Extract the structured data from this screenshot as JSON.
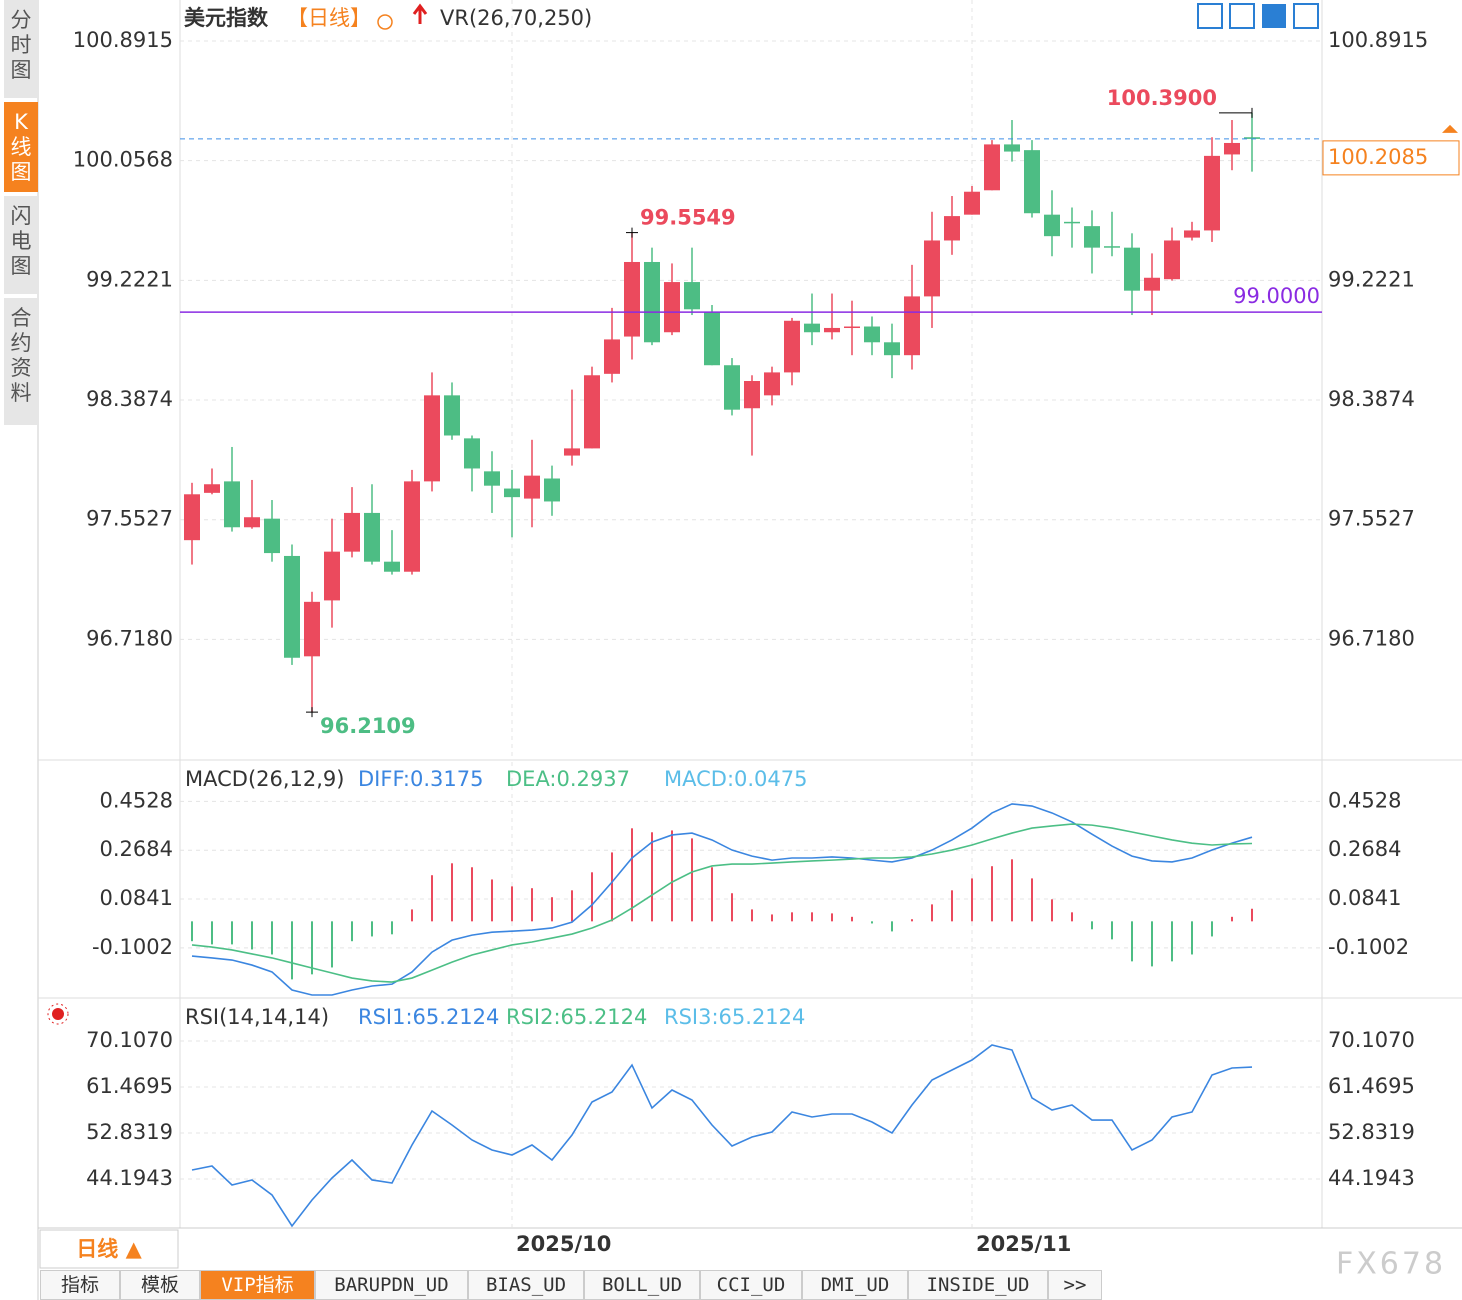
{
  "header": {
    "title": "美元指数",
    "period": "【日线】",
    "indicator": "VR(26,70,250)"
  },
  "side_tabs": [
    "分时图",
    "K线图",
    "闪电图",
    "合约资料"
  ],
  "chart_data": [
    {
      "type": "candlestick",
      "categories": [
        null,
        null,
        null,
        null,
        null,
        null,
        null,
        null,
        null,
        null,
        null,
        null,
        null,
        null,
        null,
        null,
        "2025/10",
        null,
        null,
        null,
        null,
        null,
        null,
        null,
        null,
        null,
        null,
        null,
        null,
        null,
        null,
        null,
        null,
        null,
        null,
        null,
        null,
        null,
        null,
        "2025/11",
        null,
        null,
        null,
        null,
        null,
        null,
        null,
        null,
        null,
        null,
        null,
        null,
        null,
        null
      ],
      "open": [
        97.41,
        97.74,
        97.82,
        97.5,
        97.56,
        97.3,
        96.6,
        96.99,
        97.33,
        97.6,
        97.26,
        97.19,
        97.82,
        98.42,
        98.12,
        97.89,
        97.77,
        97.7,
        97.84,
        98.0,
        98.05,
        98.57,
        98.83,
        99.35,
        98.86,
        99.21,
        99.0,
        98.63,
        98.33,
        98.42,
        98.58,
        98.92,
        98.86,
        98.89,
        98.9,
        98.79,
        98.7,
        99.11,
        99.5,
        99.68,
        99.85,
        100.17,
        100.13,
        99.68,
        99.63,
        99.6,
        99.46,
        99.45,
        99.15,
        99.23,
        99.52,
        99.57,
        100.1,
        100.22
      ],
      "high": [
        97.81,
        97.91,
        98.06,
        97.83,
        97.69,
        97.38,
        97.05,
        97.56,
        97.78,
        97.8,
        97.48,
        97.9,
        98.58,
        98.51,
        98.14,
        98.03,
        97.9,
        98.11,
        97.93,
        98.46,
        98.62,
        99.03,
        99.5549,
        99.45,
        99.34,
        99.45,
        99.05,
        98.68,
        98.56,
        98.62,
        98.96,
        99.13,
        99.13,
        99.08,
        98.97,
        98.92,
        99.33,
        99.7,
        99.81,
        99.88,
        100.2,
        100.34,
        100.2,
        99.85,
        99.73,
        99.71,
        99.7,
        99.55,
        99.41,
        99.59,
        99.63,
        100.22,
        100.34,
        100.39
      ],
      "low": [
        97.24,
        97.73,
        97.47,
        97.49,
        97.26,
        96.54,
        96.2109,
        96.8,
        97.29,
        97.24,
        97.17,
        97.17,
        97.75,
        98.11,
        97.75,
        97.6,
        97.43,
        97.5,
        97.58,
        97.93,
        98.05,
        98.51,
        98.67,
        98.77,
        98.84,
        98.98,
        98.63,
        98.28,
        98.0,
        98.35,
        98.49,
        98.77,
        98.81,
        98.7,
        98.7,
        98.54,
        98.6,
        98.89,
        99.4,
        99.68,
        99.85,
        100.05,
        99.66,
        99.39,
        99.45,
        99.27,
        99.39,
        98.98,
        98.98,
        99.22,
        99.5,
        99.49,
        99.99,
        99.98
      ],
      "close": [
        97.73,
        97.8,
        97.5,
        97.57,
        97.32,
        96.59,
        96.98,
        97.33,
        97.6,
        97.26,
        97.19,
        97.82,
        98.42,
        98.14,
        97.91,
        97.79,
        97.71,
        97.86,
        97.68,
        98.05,
        98.56,
        98.81,
        99.35,
        98.79,
        99.21,
        99.02,
        98.63,
        98.32,
        98.52,
        98.58,
        98.94,
        98.86,
        98.89,
        98.9,
        98.79,
        98.7,
        99.11,
        99.5,
        99.67,
        99.84,
        100.17,
        100.12,
        99.69,
        99.53,
        99.62,
        99.45,
        99.45,
        99.15,
        99.24,
        99.5,
        99.57,
        100.09,
        100.18,
        100.2085
      ],
      "up_color": "#eb4a5d",
      "down_color": "#4dbd84",
      "ylim": [
        95.877,
        101.177
      ],
      "yticks": [
        100.8915,
        100.0568,
        99.2221,
        98.3874,
        97.5527,
        {
          "value": 96.718,
          "label": "96.7180"
        }
      ],
      "annotations": [
        {
          "value": 99.5549,
          "color": "#eb4a5d"
        },
        {
          "value": 100.39,
          "label": "100.3900",
          "color": "#eb4a5d"
        },
        {
          "value": 96.2109,
          "color": "#4dbd84"
        }
      ],
      "hline": {
        "value": 99.0,
        "label": "99.0000",
        "color": "#8a2be2"
      },
      "last_price": 100.2085,
      "last_price_color": "#f5821f",
      "last_line_color": "#3f8fe6",
      "grid": true
    },
    {
      "type": "macd",
      "label": "MACD(26,12,9)",
      "legend": [
        {
          "text": "DIFF:0.3175",
          "color": "#3b86e0"
        },
        {
          "text": "DEA:0.2937",
          "color": "#4cbf86"
        },
        {
          "text": "MACD:0.0475",
          "color": "#5bbde8"
        }
      ],
      "diff": [
        -0.131,
        -0.138,
        -0.146,
        -0.165,
        -0.191,
        -0.259,
        -0.278,
        -0.278,
        -0.259,
        -0.244,
        -0.237,
        -0.191,
        -0.116,
        -0.071,
        -0.052,
        -0.041,
        -0.037,
        -0.033,
        -0.025,
        -0.003,
        0.062,
        0.148,
        0.239,
        0.299,
        0.326,
        0.333,
        0.307,
        0.269,
        0.246,
        0.231,
        0.239,
        0.239,
        0.243,
        0.239,
        0.231,
        0.224,
        0.239,
        0.269,
        0.307,
        0.352,
        0.409,
        0.443,
        0.435,
        0.409,
        0.375,
        0.329,
        0.284,
        0.246,
        0.228,
        0.224,
        0.239,
        0.269,
        0.295,
        0.3175
      ],
      "dea": [
        -0.089,
        -0.097,
        -0.108,
        -0.123,
        -0.138,
        -0.157,
        -0.176,
        -0.195,
        -0.214,
        -0.225,
        -0.229,
        -0.214,
        -0.184,
        -0.154,
        -0.127,
        -0.108,
        -0.089,
        -0.078,
        -0.063,
        -0.048,
        -0.025,
        0.005,
        0.05,
        0.099,
        0.148,
        0.186,
        0.209,
        0.216,
        0.216,
        0.22,
        0.224,
        0.228,
        0.231,
        0.235,
        0.239,
        0.239,
        0.243,
        0.254,
        0.269,
        0.288,
        0.311,
        0.333,
        0.352,
        0.36,
        0.367,
        0.363,
        0.352,
        0.337,
        0.322,
        0.307,
        0.295,
        0.288,
        0.292,
        0.2937
      ],
      "macd": [
        -0.075,
        -0.087,
        -0.087,
        -0.106,
        -0.125,
        -0.219,
        -0.2,
        -0.174,
        -0.075,
        -0.057,
        -0.049,
        0.045,
        0.174,
        0.219,
        0.204,
        0.158,
        0.132,
        0.125,
        0.091,
        0.117,
        0.185,
        0.26,
        0.351,
        0.336,
        0.343,
        0.313,
        0.204,
        0.106,
        0.045,
        0.026,
        0.034,
        0.034,
        0.03,
        0.017,
        -0.008,
        -0.038,
        0.008,
        0.064,
        0.117,
        0.162,
        0.208,
        0.234,
        0.162,
        0.083,
        0.034,
        -0.03,
        -0.068,
        -0.151,
        -0.17,
        -0.151,
        -0.125,
        -0.057,
        0.017,
        0.0475
      ],
      "diff_color": "#3b86e0",
      "dea_color": "#4cbf86",
      "up_color": "#eb4a5d",
      "down_color": "#4dbd84",
      "ylim": [
        -0.2855,
        0.6012
      ],
      "yticks": [
        0.4528,
        0.2684,
        0.0841,
        -0.1002
      ],
      "grid": true
    },
    {
      "type": "line",
      "label": "RSI(14,14,14)",
      "legend": [
        {
          "text": "RSI1:65.2124",
          "color": "#3b86e0"
        },
        {
          "text": "RSI2:65.2124",
          "color": "#4cbf86"
        },
        {
          "text": "RSI3:65.2124",
          "color": "#5bbde8"
        }
      ],
      "series": [
        {
          "color": "#3b86e0",
          "values": [
            45.88,
            46.63,
            43.07,
            44.01,
            41.19,
            35.37,
            40.25,
            44.38,
            47.76,
            44.01,
            43.44,
            50.58,
            56.96,
            54.33,
            51.52,
            49.64,
            48.7,
            50.58,
            47.76,
            52.46,
            58.65,
            60.53,
            65.6,
            57.53,
            60.91,
            59.03,
            54.33,
            50.39,
            52.08,
            53.02,
            56.78,
            55.84,
            56.4,
            56.4,
            54.9,
            52.83,
            58.09,
            62.79,
            64.66,
            66.54,
            69.36,
            68.42,
            59.41,
            57.15,
            58.09,
            55.27,
            55.27,
            49.64,
            51.52,
            55.84,
            56.78,
            63.72,
            65.04,
            65.2124
          ]
        }
      ],
      "ylim": [
        34.99,
        77.81
      ],
      "yticks": [
        {
          "value": 70.107,
          "label": "70.1070"
        },
        61.4695,
        52.8319,
        44.1943
      ],
      "grid": true
    }
  ],
  "footer": {
    "period": "日线 ▲",
    "tabs": [
      "指标",
      "模板",
      "VIP指标",
      "BARUPDN_UD",
      "BIAS_UD",
      "BOLL_UD",
      "CCI_UD",
      "DMI_UD",
      "INSIDE_UD",
      ">>"
    ]
  },
  "watermark": "FX678"
}
